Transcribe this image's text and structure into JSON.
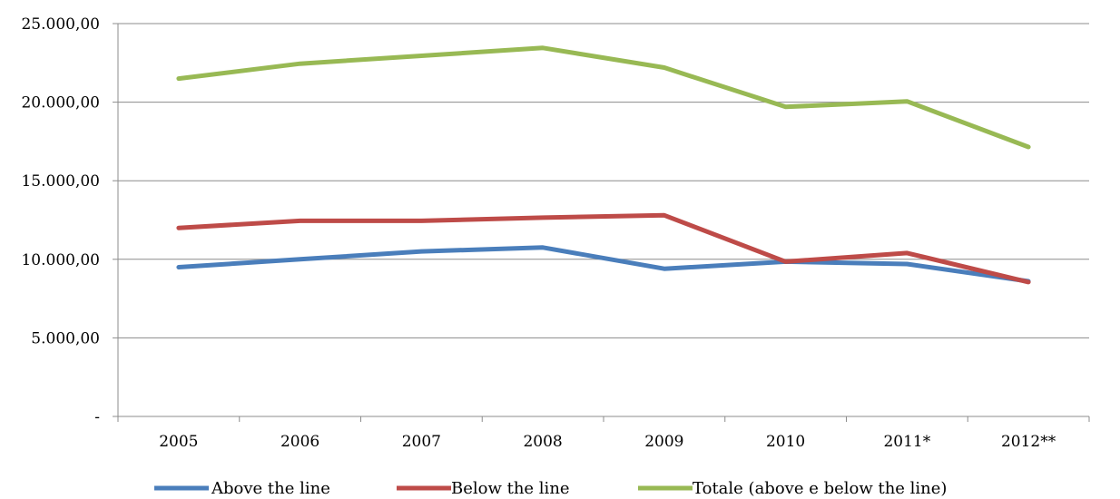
{
  "chart_data": {
    "type": "line",
    "title": "",
    "xlabel": "",
    "ylabel": "",
    "categories": [
      "2005",
      "2006",
      "2007",
      "2008",
      "2009",
      "2010",
      "2011*",
      "2012**"
    ],
    "ylim": [
      0,
      25000
    ],
    "yticks": [
      0,
      5000,
      10000,
      15000,
      20000,
      25000
    ],
    "ytick_labels": [
      "-",
      "5.000,00",
      "10.000,00",
      "15.000,00",
      "20.000,00",
      "25.000,00"
    ],
    "grid": true,
    "legend_position": "bottom",
    "series": [
      {
        "name": "Above the line",
        "color": "#4a7ebb",
        "values": [
          9500,
          10000,
          10500,
          10750,
          9400,
          9850,
          9700,
          8600
        ]
      },
      {
        "name": "Below the line",
        "color": "#be4b48",
        "values": [
          12000,
          12450,
          12450,
          12650,
          12800,
          9850,
          10400,
          8550
        ]
      },
      {
        "name": "Totale (above e below the line)",
        "color": "#98b954",
        "values": [
          21500,
          22450,
          22950,
          23450,
          22200,
          19700,
          20050,
          17150
        ]
      }
    ]
  }
}
